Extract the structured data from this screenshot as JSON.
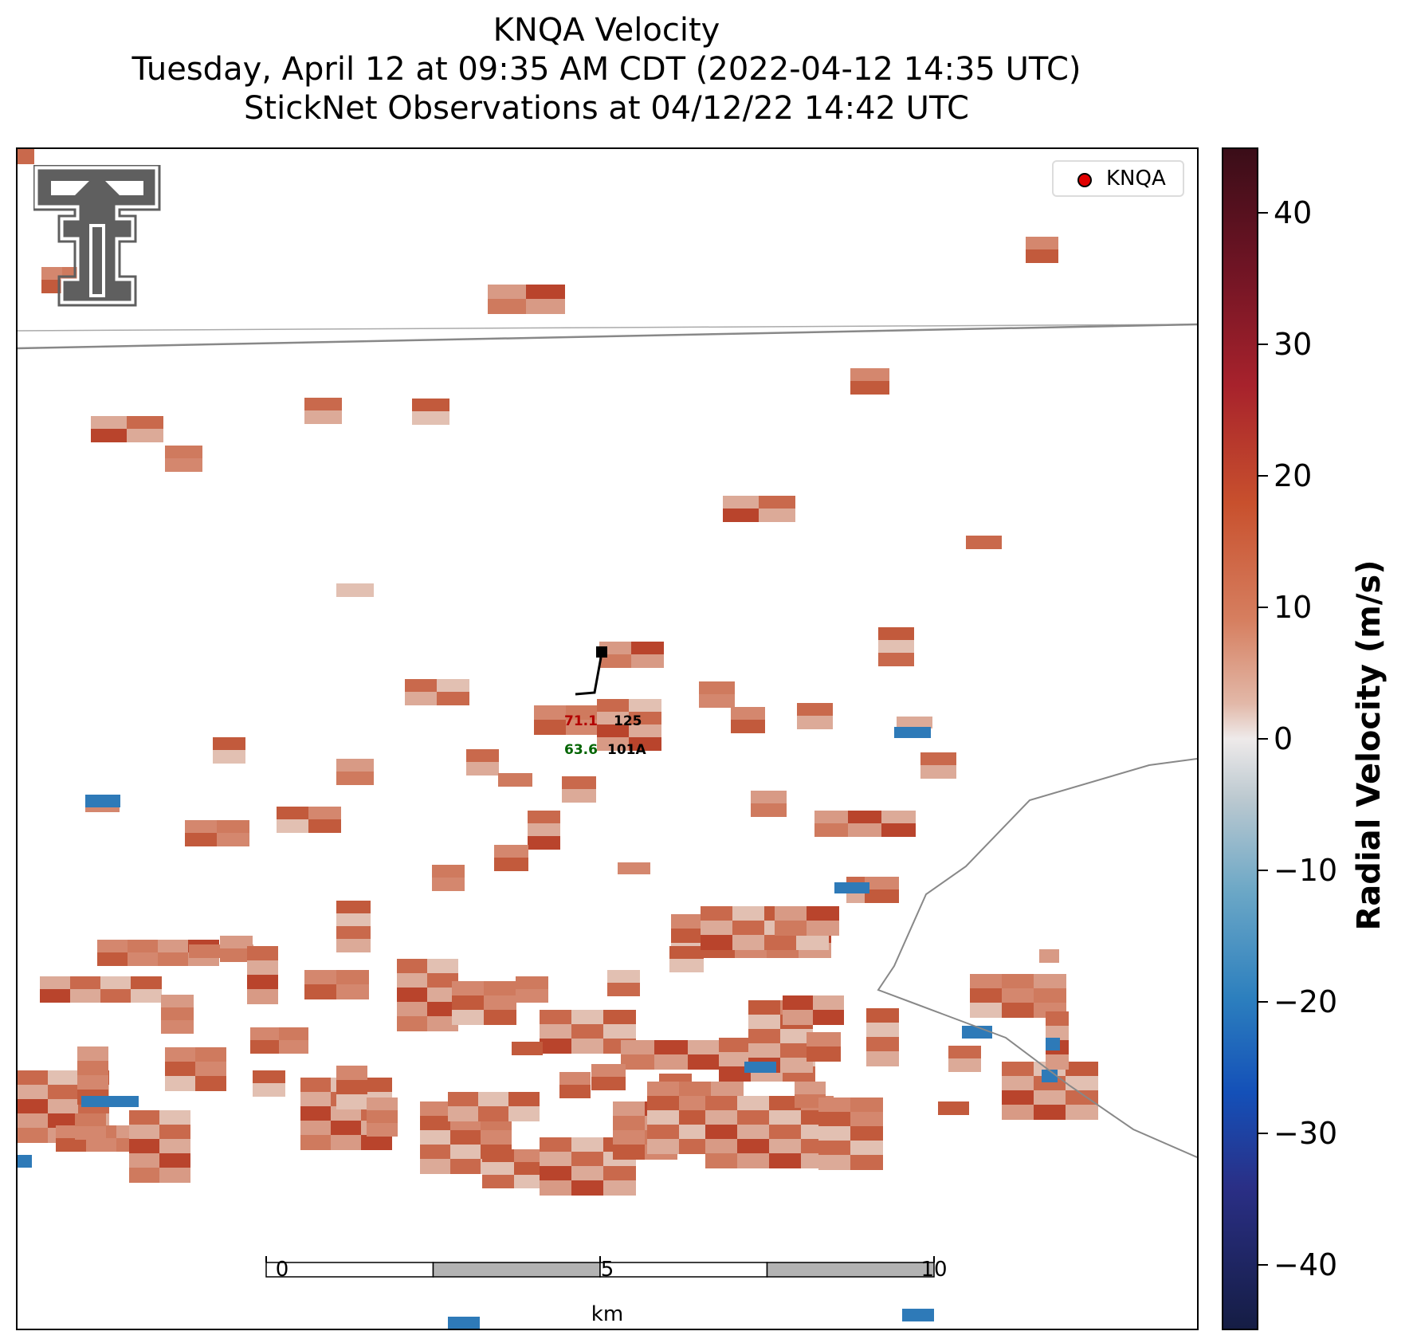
{
  "title": {
    "line1": "KNQA Velocity",
    "line2": "Tuesday, April 12 at 09:35 AM CDT (2022-04-12 14:35 UTC)",
    "line3": "StickNet Observations at 04/12/22 14:42 UTC"
  },
  "legend": {
    "label": "KNQA",
    "color": "#e00000"
  },
  "colorbar": {
    "title": "Radial Velocity (m/s)",
    "range": [
      -45,
      45
    ],
    "ticks": [
      {
        "value": 40,
        "label": "40"
      },
      {
        "value": 30,
        "label": "30"
      },
      {
        "value": 20,
        "label": "20"
      },
      {
        "value": 10,
        "label": "10"
      },
      {
        "value": 0,
        "label": "0"
      },
      {
        "value": -10,
        "label": "−10"
      },
      {
        "value": -20,
        "label": "−20"
      },
      {
        "value": -30,
        "label": "−30"
      },
      {
        "value": -40,
        "label": "−40"
      }
    ]
  },
  "scalebar": {
    "unit": "km",
    "ticks": [
      {
        "value": 0,
        "label": "0"
      },
      {
        "value": 5,
        "label": "5"
      },
      {
        "value": 10,
        "label": "10"
      }
    ]
  },
  "station": {
    "id": "101A",
    "temperature": "71.1",
    "dewpoint": "63.6",
    "pressure": "125",
    "temperature_color": "#b30000",
    "dewpoint_color": "#006400"
  },
  "logo": {
    "icon": "texas-tech-double-t-logo"
  }
}
